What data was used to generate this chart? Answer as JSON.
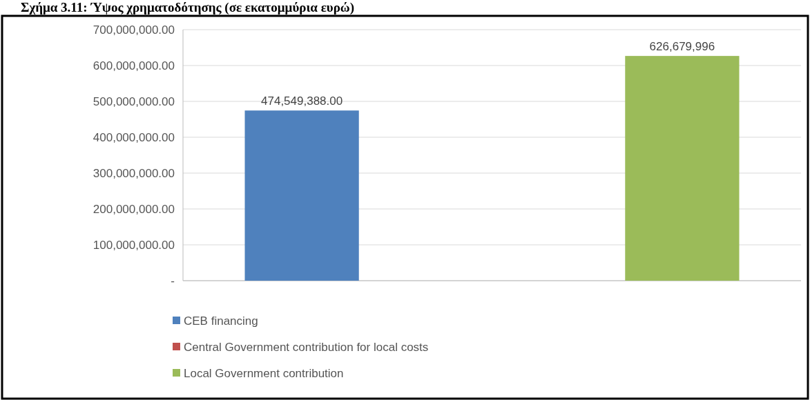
{
  "chart_data": {
    "type": "bar",
    "title": "Σχήμα 3.11: Ύψος χρηματοδότησης (σε εκατομμύρια ευρώ)",
    "categories": [
      null
    ],
    "series": [
      {
        "name": "CEB financing",
        "color": "#4f81bd",
        "values": [
          474549388
        ],
        "value_labels": [
          "474,549,388.00"
        ]
      },
      {
        "name": "Central Government contribution for local costs",
        "color": "#c0504d",
        "values": [
          0
        ],
        "value_labels": [
          null
        ]
      },
      {
        "name": "Local Government contribution",
        "color": "#9bbb59",
        "values": [
          626679996
        ],
        "value_labels": [
          "626,679,996"
        ]
      }
    ],
    "ylim": [
      0,
      700000000
    ],
    "yticks": [
      {
        "value": 0,
        "label": "-"
      },
      {
        "value": 100000000,
        "label": "100,000,000.00"
      },
      {
        "value": 200000000,
        "label": "200,000,000.00"
      },
      {
        "value": 300000000,
        "label": "300,000,000.00"
      },
      {
        "value": 400000000,
        "label": "400,000,000.00"
      },
      {
        "value": 500000000,
        "label": "500,000,000.00"
      },
      {
        "value": 600000000,
        "label": "600,000,000.00"
      },
      {
        "value": 700000000,
        "label": "700,000,000.00"
      }
    ],
    "grid": "y",
    "legend": "bottom"
  }
}
